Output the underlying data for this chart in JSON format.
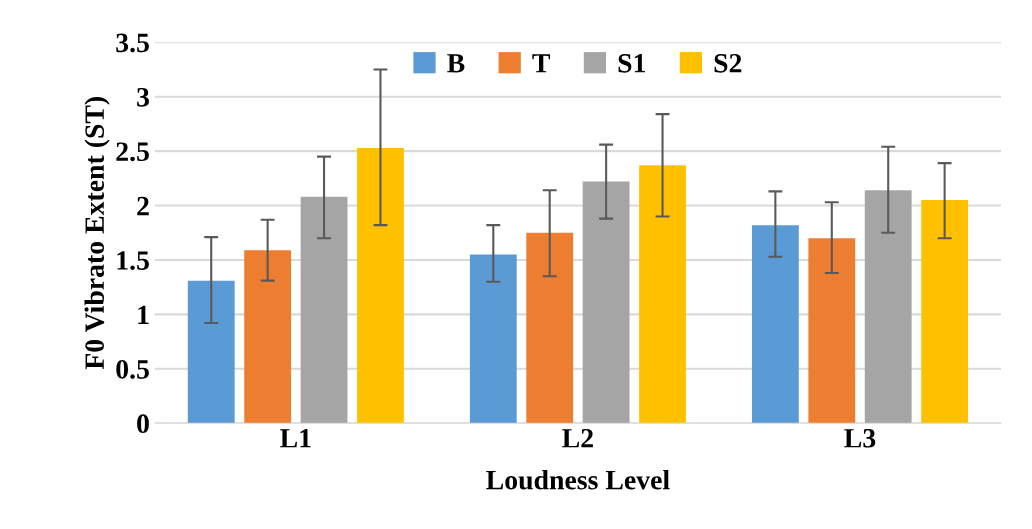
{
  "chart_data": {
    "type": "bar",
    "xlabel": "Loudness Level",
    "ylabel": "F0 Vibrato Extent (ST)",
    "categories": [
      "L1",
      "L2",
      "L3"
    ],
    "series": [
      {
        "name": "B",
        "color": "#5b9bd5",
        "values": [
          1.31,
          1.55,
          1.82
        ],
        "errors": [
          [
            0.92,
            1.71
          ],
          [
            1.3,
            1.82
          ],
          [
            1.53,
            2.13
          ]
        ]
      },
      {
        "name": "T",
        "color": "#ed7d31",
        "values": [
          1.59,
          1.75,
          1.7
        ],
        "errors": [
          [
            1.31,
            1.87
          ],
          [
            1.35,
            2.14
          ],
          [
            1.38,
            2.03
          ]
        ]
      },
      {
        "name": "S1",
        "color": "#a5a5a5",
        "values": [
          2.08,
          2.22,
          2.14
        ],
        "errors": [
          [
            1.7,
            2.45
          ],
          [
            1.88,
            2.56
          ],
          [
            1.75,
            2.54
          ]
        ]
      },
      {
        "name": "S2",
        "color": "#ffc000",
        "values": [
          2.53,
          2.37,
          2.05
        ],
        "errors": [
          [
            1.82,
            3.25
          ],
          [
            1.9,
            2.84
          ],
          [
            1.7,
            2.39
          ]
        ]
      }
    ],
    "ylim": [
      0,
      3.5
    ],
    "yticks": [
      0,
      0.5,
      1,
      1.5,
      2,
      2.5,
      3,
      3.5
    ],
    "grid": "y",
    "legend": "top"
  }
}
